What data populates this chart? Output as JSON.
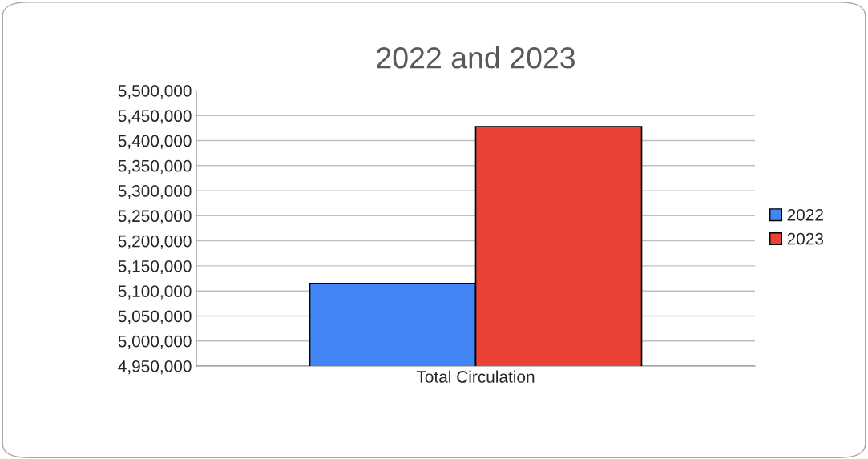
{
  "chart_data": {
    "type": "bar",
    "title": "2022 and 2023",
    "categories": [
      "Total Circulation"
    ],
    "series": [
      {
        "name": "2022",
        "color": "#4285f4",
        "values": [
          5115000
        ]
      },
      {
        "name": "2023",
        "color": "#ea4335",
        "values": [
          5428000
        ]
      }
    ],
    "ylim": [
      4950000,
      5500000
    ],
    "yticks": [
      {
        "value": 4950000,
        "label": "4,950,000"
      },
      {
        "value": 5000000,
        "label": "5,000,000"
      },
      {
        "value": 5050000,
        "label": "5,050,000"
      },
      {
        "value": 5100000,
        "label": "5,100,000"
      },
      {
        "value": 5150000,
        "label": "5,150,000"
      },
      {
        "value": 5200000,
        "label": "5,200,000"
      },
      {
        "value": 5250000,
        "label": "5,250,000"
      },
      {
        "value": 5300000,
        "label": "5,300,000"
      },
      {
        "value": 5350000,
        "label": "5,350,000"
      },
      {
        "value": 5400000,
        "label": "5,400,000"
      },
      {
        "value": 5450000,
        "label": "5,450,000"
      },
      {
        "value": 5500000,
        "label": "5,500,000"
      }
    ],
    "grid": "y",
    "legend": "right"
  }
}
